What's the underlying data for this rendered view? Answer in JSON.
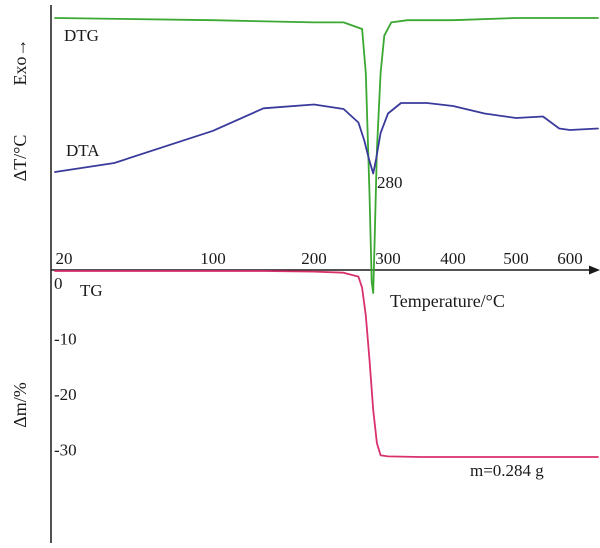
{
  "chart_data": {
    "type": "line",
    "title": "",
    "xlabel": "Temperature/°C",
    "x_ticks": [
      "20",
      "100",
      "200",
      "300",
      "400",
      "500",
      "600"
    ],
    "y_labels": {
      "upper_left": "ΔT/°C",
      "exo_arrow": "Exo→",
      "lower_left": "Δm/%"
    },
    "tg_y_ticks": [
      "0",
      "-10",
      "-20",
      "-30"
    ],
    "series": [
      {
        "name": "DTG",
        "color": "#3aa831",
        "x": [
          20,
          100,
          200,
          240,
          265,
          270,
          275,
          278,
          280,
          282,
          285,
          290,
          295,
          305,
          330,
          400,
          500,
          620
        ],
        "y": [
          0.0,
          0.01,
          0.02,
          0.02,
          0.05,
          0.25,
          0.8,
          1.2,
          1.25,
          1.0,
          0.6,
          0.25,
          0.08,
          0.02,
          0.01,
          0.01,
          0.0,
          0.0
        ]
      },
      {
        "name": "DTA",
        "color": "#3a3a9c",
        "x": [
          20,
          50,
          100,
          150,
          200,
          240,
          260,
          268,
          274,
          280,
          284,
          290,
          300,
          320,
          360,
          400,
          450,
          500,
          550,
          580,
          600,
          620
        ],
        "y": [
          0.0,
          0.12,
          0.55,
          0.85,
          0.9,
          0.84,
          0.66,
          0.42,
          0.18,
          -0.02,
          0.18,
          0.52,
          0.78,
          0.92,
          0.92,
          0.88,
          0.78,
          0.72,
          0.74,
          0.58,
          0.56,
          0.58
        ]
      },
      {
        "name": "TG",
        "color": "#d9306e",
        "x": [
          20,
          100,
          150,
          200,
          240,
          260,
          265,
          270,
          275,
          280,
          285,
          290,
          300,
          350,
          450,
          620
        ],
        "y": [
          0.0,
          0.0,
          0.0,
          -0.1,
          -0.3,
          -1.0,
          -3.0,
          -8.0,
          -16.0,
          -25.0,
          -31.0,
          -33.2,
          -33.4,
          -33.5,
          -33.5,
          -33.5
        ]
      }
    ],
    "annotations": [
      "280",
      "m=0.284 g"
    ]
  }
}
